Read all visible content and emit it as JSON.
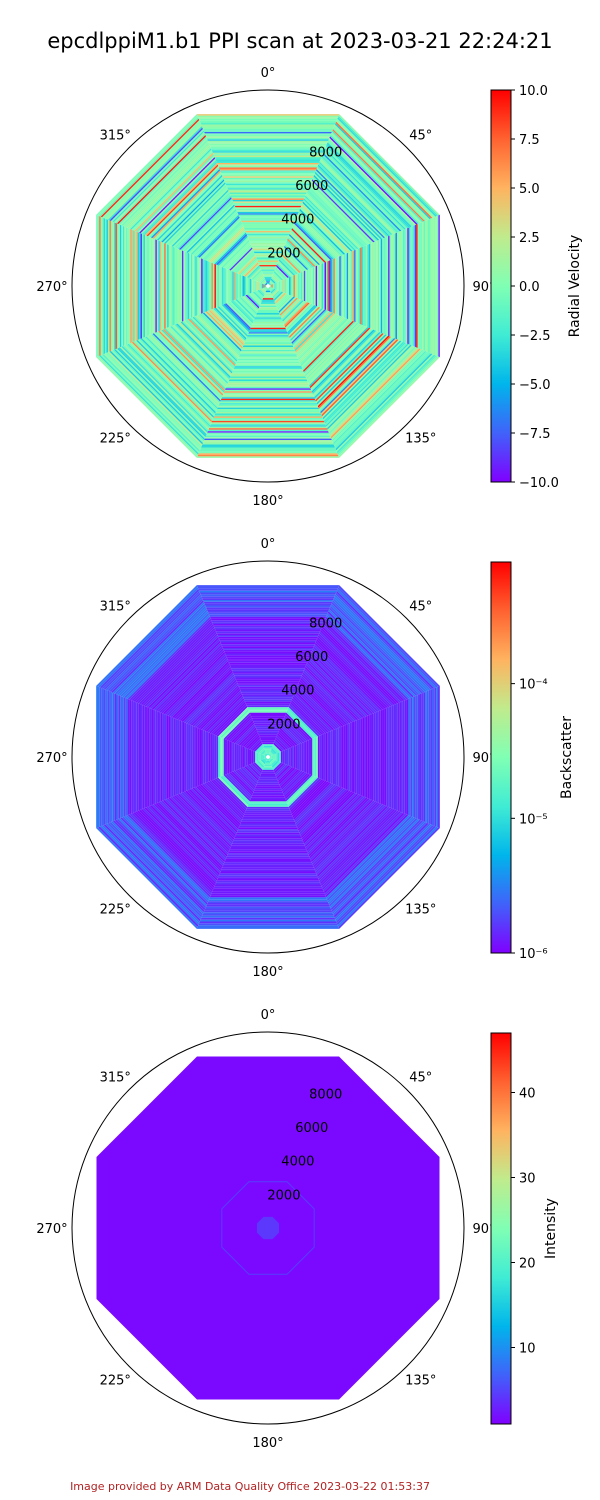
{
  "figure": {
    "title": "epcdlppiM1.b1 PPI scan at 2023-03-21 22:24:21",
    "footer": "Image provided by ARM Data Quality Office 2023-03-22 01:53:37"
  },
  "chart_data": [
    {
      "type": "heatmap",
      "projection": "polar",
      "angular_ticks": [
        "0°",
        "45°",
        "90°",
        "135°",
        "180°",
        "225°",
        "270°",
        "315°"
      ],
      "radial_ticks": [
        "2000",
        "4000",
        "6000",
        "8000"
      ],
      "rmax": 10000,
      "colorbar": {
        "label": "Radial Velocity",
        "scale": "linear",
        "range": [
          -10.0,
          10.0
        ],
        "ticks": [
          "10.0",
          "7.5",
          "5.0",
          "2.5",
          "0.0",
          "−2.5",
          "−5.0",
          "−7.5",
          "−10.0"
        ],
        "colormap": "rainbow"
      },
      "description_value": "mixed"
    },
    {
      "type": "heatmap",
      "projection": "polar",
      "angular_ticks": [
        "0°",
        "45°",
        "90°",
        "135°",
        "180°",
        "225°",
        "270°",
        "315°"
      ],
      "radial_ticks": [
        "2000",
        "4000",
        "6000",
        "8000"
      ],
      "rmax": 10000,
      "colorbar": {
        "label": "Backscatter",
        "scale": "log",
        "range": [
          1e-06,
          0.0008
        ],
        "ticks": [
          "10⁻⁴",
          "10⁻⁵",
          "10⁻⁶"
        ],
        "colormap": "rainbow"
      }
    },
    {
      "type": "heatmap",
      "projection": "polar",
      "angular_ticks": [
        "0°",
        "45°",
        "90°",
        "135°",
        "180°",
        "225°",
        "270°",
        "315°"
      ],
      "radial_ticks": [
        "2000",
        "4000",
        "6000",
        "8000"
      ],
      "rmax": 10000,
      "colorbar": {
        "label": "Intensity",
        "scale": "linear",
        "range": [
          1,
          47
        ],
        "ticks": [
          "40",
          "30",
          "20",
          "10"
        ],
        "colormap": "rainbow"
      }
    }
  ]
}
